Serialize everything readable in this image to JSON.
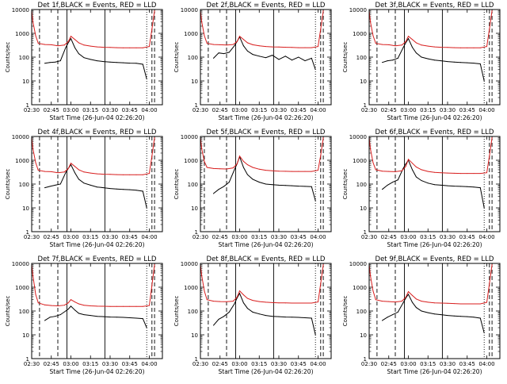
{
  "colors": {
    "events": "#000000",
    "lld": "#d81e1e",
    "axis": "#000000",
    "background": "#ffffff"
  },
  "shared": {
    "type": "line",
    "xlabel": "Start Time (26-Jun-04 02:26:20)",
    "ylabel": "Counts/sec",
    "x_tick_labels": [
      "02:30",
      "02:45",
      "03:00",
      "03:15",
      "03:30",
      "03:45",
      "04:00"
    ],
    "x_tick_minutes": [
      30,
      45,
      60,
      75,
      90,
      105,
      120
    ],
    "xlim_minutes": [
      30,
      130
    ],
    "ylim": [
      1,
      10000
    ],
    "y_scale": "log",
    "y_tick_labels": [
      "1",
      "10",
      "100",
      "1000",
      "10000"
    ],
    "y_tick_values": [
      1,
      10,
      100,
      1000,
      10000
    ]
  },
  "chart_data": [
    {
      "title": "Det 1f,BLACK = Events, RED = LLD",
      "series": [
        {
          "name": "Events",
          "color": "black",
          "x": [
            40,
            44,
            48,
            52,
            56,
            58,
            60,
            63,
            66,
            70,
            75,
            80,
            85,
            90,
            95,
            100,
            105,
            110,
            115,
            118
          ],
          "values": [
            55,
            60,
            62,
            70,
            250,
            400,
            600,
            250,
            140,
            95,
            80,
            70,
            65,
            62,
            60,
            58,
            56,
            55,
            50,
            12
          ]
        },
        {
          "name": "LLD",
          "color": "red",
          "x": [
            30,
            31,
            33,
            35,
            40,
            45,
            50,
            55,
            58,
            60,
            63,
            66,
            70,
            75,
            80,
            85,
            90,
            95,
            100,
            105,
            110,
            115,
            120,
            122,
            124
          ],
          "values": [
            9000,
            3000,
            800,
            380,
            340,
            330,
            300,
            320,
            450,
            750,
            550,
            400,
            320,
            290,
            270,
            260,
            255,
            250,
            245,
            245,
            245,
            245,
            280,
            1500,
            9000
          ]
        }
      ],
      "vlines_dashed": [
        36,
        50,
        122,
        124
      ],
      "vlines_solid": [
        57,
        86
      ],
      "vlines_dotted": [
        118
      ]
    },
    {
      "title": "Det 2f,BLACK = Events, RED = LLD",
      "series": [
        {
          "name": "Events",
          "color": "black",
          "x": [
            40,
            44,
            48,
            52,
            56,
            58,
            60,
            63,
            66,
            70,
            75,
            80,
            85,
            90,
            95,
            100,
            105,
            110,
            115,
            118
          ],
          "values": [
            90,
            150,
            140,
            160,
            300,
            450,
            700,
            300,
            180,
            130,
            110,
            95,
            120,
            80,
            110,
            75,
            100,
            70,
            90,
            30
          ]
        },
        {
          "name": "LLD",
          "color": "red",
          "x": [
            30,
            31,
            33,
            35,
            40,
            45,
            50,
            55,
            58,
            60,
            63,
            66,
            70,
            75,
            80,
            85,
            90,
            95,
            100,
            105,
            110,
            115,
            120,
            122,
            124
          ],
          "values": [
            9000,
            3000,
            800,
            380,
            340,
            330,
            320,
            340,
            450,
            750,
            550,
            400,
            330,
            300,
            280,
            270,
            265,
            260,
            255,
            250,
            250,
            250,
            280,
            1500,
            9000
          ]
        }
      ],
      "vlines_dashed": [
        36,
        50,
        122,
        124
      ],
      "vlines_solid": [
        57,
        86
      ],
      "vlines_dotted": [
        118
      ]
    },
    {
      "title": "Det 3f,BLACK = Events, RED = LLD",
      "series": [
        {
          "name": "Events",
          "color": "black",
          "x": [
            40,
            44,
            48,
            52,
            56,
            58,
            60,
            63,
            66,
            70,
            75,
            80,
            85,
            90,
            95,
            100,
            105,
            110,
            115,
            118
          ],
          "values": [
            60,
            70,
            75,
            90,
            250,
            400,
            600,
            260,
            150,
            100,
            85,
            75,
            70,
            65,
            62,
            60,
            58,
            56,
            52,
            10
          ]
        },
        {
          "name": "LLD",
          "color": "red",
          "x": [
            30,
            31,
            33,
            35,
            40,
            45,
            50,
            55,
            58,
            60,
            63,
            66,
            70,
            75,
            80,
            85,
            90,
            95,
            100,
            105,
            110,
            115,
            120,
            122,
            124
          ],
          "values": [
            9000,
            3000,
            800,
            380,
            340,
            330,
            300,
            320,
            450,
            750,
            550,
            400,
            320,
            290,
            270,
            260,
            255,
            250,
            245,
            245,
            245,
            245,
            280,
            1500,
            9000
          ]
        }
      ],
      "vlines_dashed": [
        36,
        50,
        122,
        124
      ],
      "vlines_solid": [
        57,
        86
      ],
      "vlines_dotted": [
        118
      ]
    },
    {
      "title": "Det 4f,BLACK = Events, RED = LLD",
      "series": [
        {
          "name": "Events",
          "color": "black",
          "x": [
            40,
            44,
            48,
            52,
            56,
            58,
            60,
            63,
            66,
            70,
            75,
            80,
            85,
            90,
            95,
            100,
            105,
            110,
            115,
            118
          ],
          "values": [
            70,
            80,
            90,
            100,
            300,
            450,
            650,
            300,
            160,
            110,
            90,
            75,
            70,
            65,
            62,
            60,
            58,
            55,
            50,
            10
          ]
        },
        {
          "name": "LLD",
          "color": "red",
          "x": [
            30,
            31,
            33,
            35,
            40,
            45,
            50,
            55,
            58,
            60,
            63,
            66,
            70,
            75,
            80,
            85,
            90,
            95,
            100,
            105,
            110,
            115,
            120,
            122,
            124
          ],
          "values": [
            9000,
            3000,
            800,
            380,
            340,
            330,
            300,
            320,
            450,
            750,
            550,
            400,
            320,
            290,
            270,
            260,
            255,
            250,
            245,
            245,
            245,
            245,
            280,
            1500,
            9000
          ]
        }
      ],
      "vlines_dashed": [
        36,
        50,
        122,
        124
      ],
      "vlines_solid": [
        57,
        86
      ],
      "vlines_dotted": [
        118
      ]
    },
    {
      "title": "Det 5f,BLACK = Events, RED = LLD",
      "series": [
        {
          "name": "Events",
          "color": "black",
          "x": [
            40,
            44,
            48,
            52,
            56,
            58,
            60,
            63,
            66,
            70,
            75,
            80,
            85,
            90,
            95,
            100,
            105,
            110,
            115,
            118
          ],
          "values": [
            40,
            60,
            80,
            120,
            400,
            700,
            1400,
            500,
            250,
            160,
            120,
            100,
            95,
            90,
            88,
            85,
            82,
            80,
            78,
            20
          ]
        },
        {
          "name": "LLD",
          "color": "red",
          "x": [
            30,
            31,
            33,
            35,
            40,
            45,
            50,
            55,
            58,
            60,
            63,
            66,
            70,
            75,
            80,
            85,
            90,
            95,
            100,
            105,
            110,
            115,
            120,
            122,
            124
          ],
          "values": [
            9000,
            3000,
            900,
            500,
            450,
            440,
            430,
            480,
            700,
            1500,
            900,
            650,
            500,
            420,
            380,
            360,
            350,
            345,
            340,
            340,
            340,
            340,
            380,
            1600,
            9000
          ]
        }
      ],
      "vlines_dashed": [
        33,
        50,
        122,
        124
      ],
      "vlines_solid": [
        57,
        86
      ],
      "vlines_dotted": [
        118
      ]
    },
    {
      "title": "Det 6f,BLACK = Events, RED = LLD",
      "series": [
        {
          "name": "Events",
          "color": "black",
          "x": [
            40,
            44,
            48,
            52,
            56,
            58,
            60,
            63,
            66,
            70,
            75,
            80,
            85,
            90,
            95,
            100,
            105,
            110,
            115,
            118
          ],
          "values": [
            60,
            90,
            120,
            150,
            450,
            700,
            1000,
            400,
            200,
            140,
            110,
            95,
            90,
            85,
            82,
            80,
            78,
            75,
            70,
            10
          ]
        },
        {
          "name": "LLD",
          "color": "red",
          "x": [
            30,
            31,
            33,
            35,
            40,
            45,
            50,
            55,
            58,
            60,
            63,
            66,
            70,
            75,
            80,
            85,
            90,
            95,
            100,
            105,
            110,
            115,
            120,
            122,
            124
          ],
          "values": [
            9000,
            3000,
            800,
            400,
            350,
            340,
            330,
            360,
            550,
            1100,
            750,
            520,
            400,
            340,
            310,
            300,
            290,
            285,
            280,
            280,
            280,
            280,
            300,
            1500,
            9000
          ]
        }
      ],
      "vlines_dashed": [
        36,
        50,
        122,
        124
      ],
      "vlines_solid": [
        57,
        86
      ],
      "vlines_dotted": [
        118
      ]
    },
    {
      "title": "Det 7f,BLACK = Events, RED = LLD",
      "series": [
        {
          "name": "Events",
          "color": "black",
          "x": [
            40,
            44,
            48,
            52,
            56,
            58,
            60,
            63,
            66,
            70,
            75,
            80,
            85,
            90,
            95,
            100,
            105,
            110,
            115,
            118
          ],
          "values": [
            40,
            55,
            60,
            70,
            100,
            120,
            160,
            110,
            80,
            70,
            65,
            60,
            58,
            56,
            55,
            54,
            52,
            50,
            48,
            20
          ]
        },
        {
          "name": "LLD",
          "color": "red",
          "x": [
            30,
            31,
            33,
            35,
            40,
            45,
            50,
            55,
            58,
            60,
            63,
            66,
            70,
            75,
            80,
            85,
            90,
            95,
            100,
            105,
            110,
            115,
            120,
            122,
            124
          ],
          "values": [
            9000,
            3000,
            500,
            220,
            180,
            170,
            165,
            175,
            220,
            300,
            240,
            200,
            175,
            165,
            160,
            158,
            155,
            155,
            155,
            155,
            155,
            155,
            170,
            1200,
            9000
          ]
        }
      ],
      "vlines_dashed": [
        36,
        50,
        122,
        124
      ],
      "vlines_solid": [
        57,
        86
      ],
      "vlines_dotted": [
        118
      ]
    },
    {
      "title": "Det 8f,BLACK = Events, RED = LLD",
      "series": [
        {
          "name": "Events",
          "color": "black",
          "x": [
            40,
            44,
            48,
            52,
            56,
            58,
            60,
            63,
            66,
            70,
            75,
            80,
            85,
            90,
            95,
            100,
            105,
            110,
            115,
            118
          ],
          "values": [
            25,
            45,
            60,
            90,
            200,
            350,
            550,
            220,
            130,
            90,
            75,
            65,
            60,
            58,
            56,
            55,
            54,
            52,
            50,
            10
          ]
        },
        {
          "name": "LLD",
          "color": "red",
          "x": [
            30,
            31,
            33,
            35,
            40,
            45,
            50,
            55,
            58,
            60,
            63,
            66,
            70,
            75,
            80,
            85,
            90,
            95,
            100,
            105,
            110,
            115,
            120,
            122,
            124
          ],
          "values": [
            9000,
            3000,
            700,
            300,
            260,
            250,
            245,
            260,
            380,
            700,
            480,
            340,
            280,
            250,
            235,
            225,
            220,
            218,
            215,
            215,
            215,
            215,
            240,
            1400,
            9000
          ]
        }
      ],
      "vlines_dashed": [
        36,
        50,
        122,
        124
      ],
      "vlines_solid": [
        57,
        86
      ],
      "vlines_dotted": [
        118
      ]
    },
    {
      "title": "Det 9f,BLACK = Events, RED = LLD",
      "series": [
        {
          "name": "Events",
          "color": "black",
          "x": [
            40,
            44,
            48,
            52,
            56,
            58,
            60,
            63,
            66,
            70,
            75,
            80,
            85,
            90,
            95,
            100,
            105,
            110,
            115,
            118
          ],
          "values": [
            40,
            55,
            70,
            90,
            220,
            350,
            500,
            230,
            140,
            100,
            85,
            75,
            70,
            65,
            62,
            60,
            58,
            55,
            50,
            12
          ]
        },
        {
          "name": "LLD",
          "color": "red",
          "x": [
            30,
            31,
            33,
            35,
            40,
            45,
            50,
            55,
            58,
            60,
            63,
            66,
            70,
            75,
            80,
            85,
            90,
            95,
            100,
            105,
            110,
            115,
            120,
            122,
            124
          ],
          "values": [
            9000,
            3000,
            700,
            300,
            260,
            250,
            240,
            260,
            380,
            650,
            450,
            320,
            260,
            235,
            220,
            215,
            210,
            205,
            200,
            200,
            200,
            200,
            230,
            1400,
            9000
          ]
        }
      ],
      "vlines_dashed": [
        36,
        50,
        122,
        124
      ],
      "vlines_solid": [
        57,
        86
      ],
      "vlines_dotted": [
        118
      ]
    }
  ]
}
